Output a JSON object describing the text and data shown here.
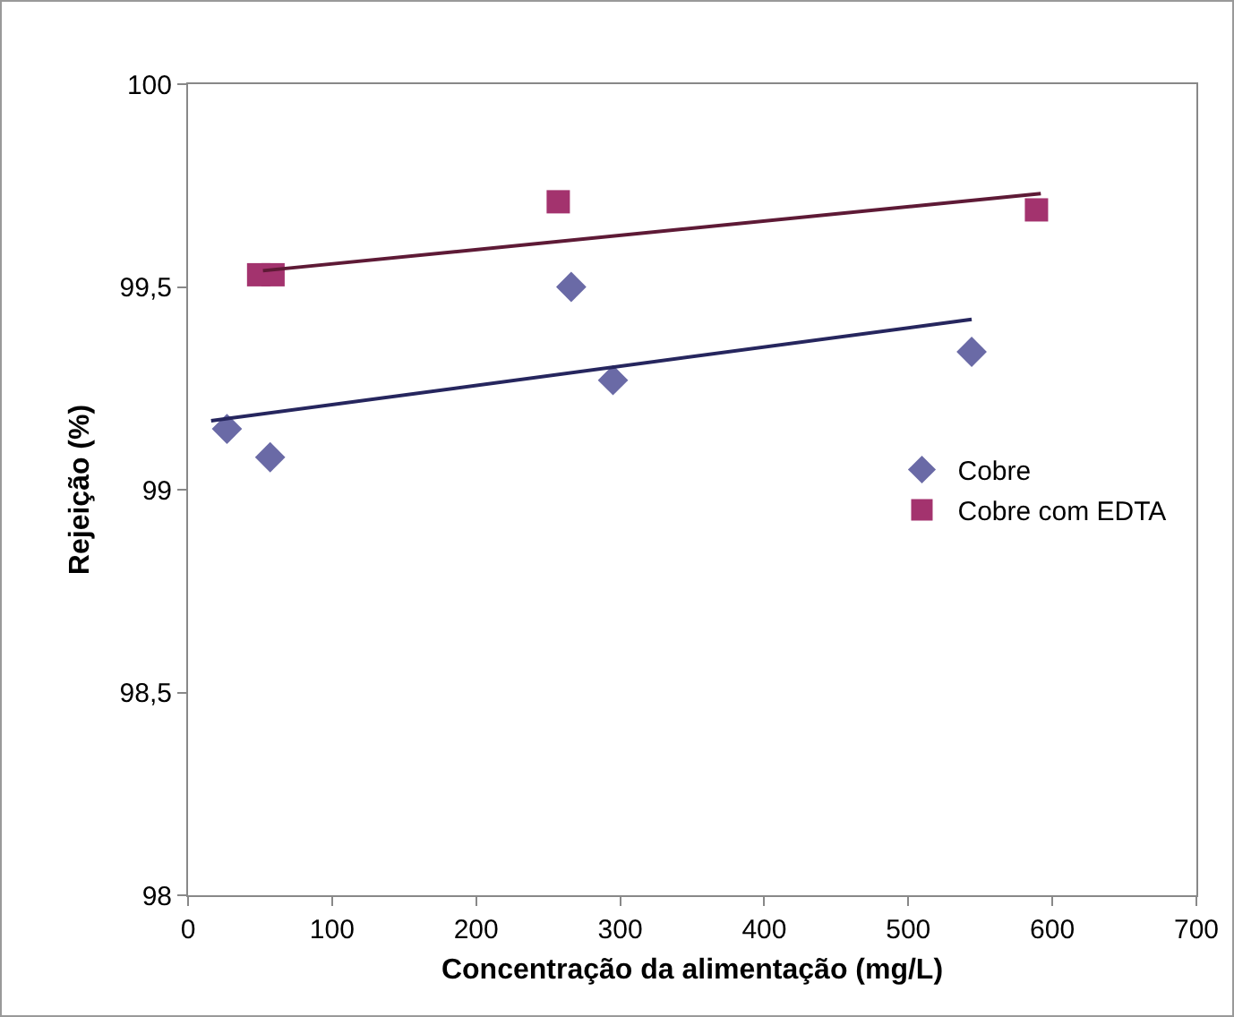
{
  "chart_data": {
    "type": "scatter",
    "xlabel": "Concentração da alimentação (mg/L)",
    "ylabel": "Rejeição (%)",
    "xlim": [
      0,
      700
    ],
    "xticks": [
      0,
      100,
      200,
      300,
      400,
      500,
      600,
      700
    ],
    "ylim": [
      98,
      100
    ],
    "yticks": [
      98,
      {
        "value": 98.5,
        "label": "98,5"
      },
      99,
      {
        "value": 99.5,
        "label": "99,5"
      },
      100
    ],
    "grid": false,
    "legend": "right",
    "series": [
      {
        "name": "Cobre",
        "color": "#6a6aa6",
        "marker": "diamond",
        "x": [
          27,
          57,
          266,
          295,
          544
        ],
        "values": [
          99.15,
          99.08,
          99.5,
          99.27,
          99.34
        ]
      },
      {
        "name": "Cobre com EDTA",
        "color": "#a3336e",
        "marker": "square",
        "x": [
          49,
          59,
          257,
          589
        ],
        "values": [
          99.53,
          99.53,
          99.71,
          99.69
        ]
      },
      {
        "type": "line",
        "marker": "none",
        "color": "#26265e",
        "x": [
          16,
          544
        ],
        "values": [
          99.17,
          99.42
        ]
      },
      {
        "type": "line",
        "marker": "none",
        "color": "#5e1a36",
        "x": [
          52,
          592
        ],
        "values": [
          99.54,
          99.73
        ]
      }
    ]
  }
}
